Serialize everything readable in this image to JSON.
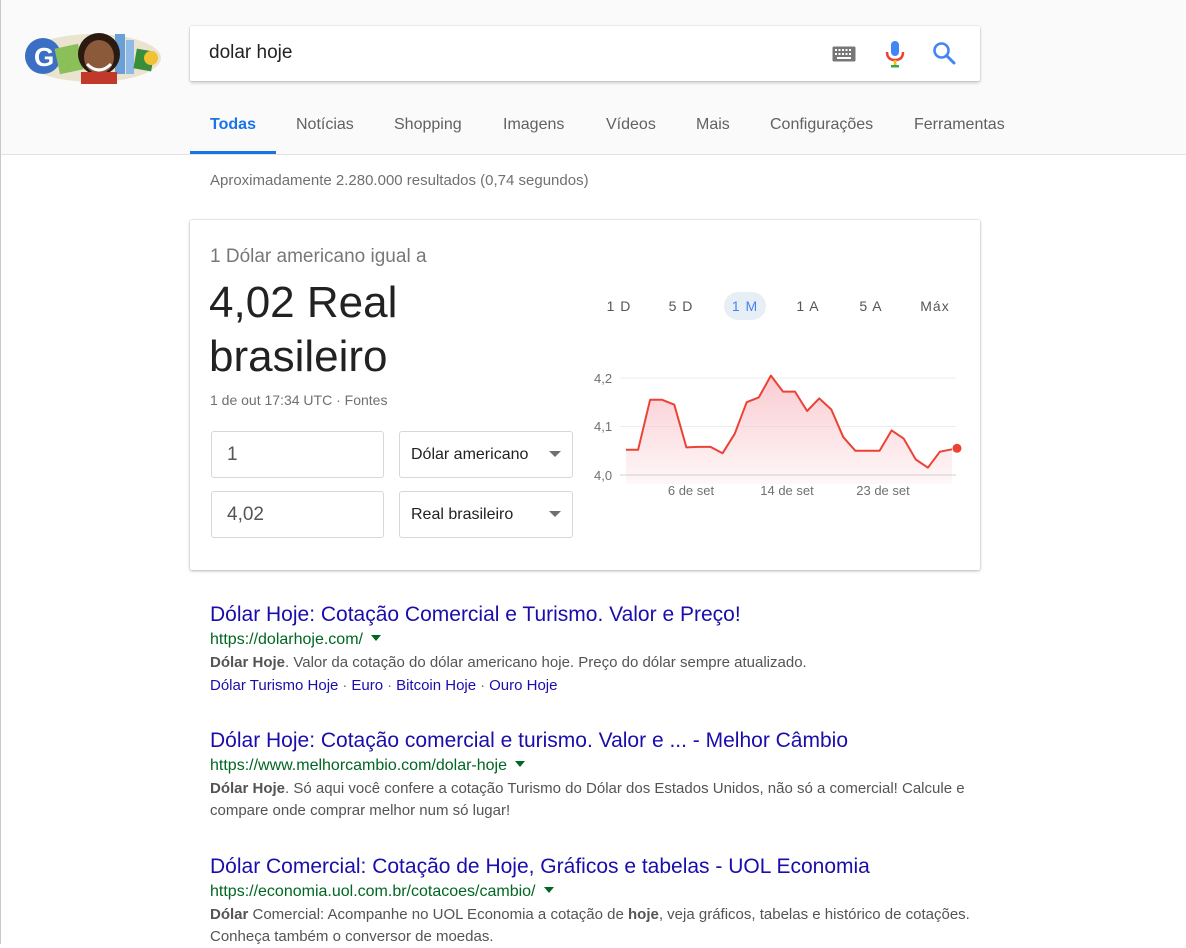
{
  "search": {
    "query": "dolar hoje"
  },
  "tabs": [
    {
      "label": "Todas",
      "active": true
    },
    {
      "label": "Notícias"
    },
    {
      "label": "Shopping"
    },
    {
      "label": "Imagens"
    },
    {
      "label": "Vídeos"
    },
    {
      "label": "Mais"
    },
    {
      "label": "Configurações"
    },
    {
      "label": "Ferramentas"
    }
  ],
  "stats": "Aproximadamente 2.280.000 resultados (0,74 segundos)",
  "converter": {
    "equal_label": "1 Dólar americano igual a",
    "value_line1": "4,02 Real",
    "value_line2": "brasileiro",
    "time": "1 de out 17:34 UTC",
    "sep": " · ",
    "sources": "Fontes",
    "from_amount": "1",
    "from_currency": "Dólar americano",
    "to_amount": "4,02",
    "to_currency": "Real brasileiro",
    "ranges": [
      "1 D",
      "5 D",
      "1 M",
      "1 A",
      "5 A",
      "Máx"
    ],
    "active_range": "1 M",
    "colors": {
      "line": "#ea4335",
      "fill": "#f9c9cf",
      "active_range": "#4285f4"
    }
  },
  "chart_data": {
    "type": "area",
    "ylim": [
      4.0,
      4.2
    ],
    "yticks": [
      "4,2",
      "4,1",
      "4,0"
    ],
    "xticks": [
      "6 de set",
      "14 de set",
      "23 de set"
    ],
    "values": [
      4.052,
      4.052,
      4.155,
      4.155,
      4.145,
      4.057,
      4.058,
      4.058,
      4.045,
      4.085,
      4.15,
      4.16,
      4.205,
      4.172,
      4.172,
      4.132,
      4.158,
      4.135,
      4.078,
      4.05,
      4.05,
      4.05,
      4.092,
      4.075,
      4.032,
      4.015,
      4.048,
      4.053
    ]
  },
  "results": [
    {
      "title": "Dólar Hoje: Cotação Comercial e Turismo. Valor e Preço!",
      "url": "https://dolarhoje.com/",
      "snippet_bold": "Dólar Hoje",
      "snippet_rest": ". Valor da cotação do dólar americano hoje. Preço do dólar sempre atualizado.",
      "sitelinks": [
        "Dólar Turismo Hoje",
        "Euro",
        "Bitcoin Hoje",
        "Ouro Hoje"
      ]
    },
    {
      "title": "Dólar Hoje: Cotação comercial e turismo. Valor e ... - Melhor Câmbio",
      "url": "https://www.melhorcambio.com/dolar-hoje",
      "snippet_bold": "Dólar Hoje",
      "snippet_rest": ". Só aqui você confere a cotação Turismo do Dólar dos Estados Unidos, não só a comercial! Calcule e compare onde comprar melhor num só lugar!"
    },
    {
      "title": "Dólar Comercial: Cotação de Hoje, Gráficos e tabelas - UOL Economia",
      "url": "https://economia.uol.com.br/cotacoes/cambio/",
      "snippet_b1": "Dólar",
      "snippet_t1": " Comercial: Acompanhe no UOL Economia a cotação de ",
      "snippet_b2": "hoje",
      "snippet_t2": ", veja gráficos, tabelas e histórico de cotações. Conheça também o conversor de moedas."
    }
  ]
}
